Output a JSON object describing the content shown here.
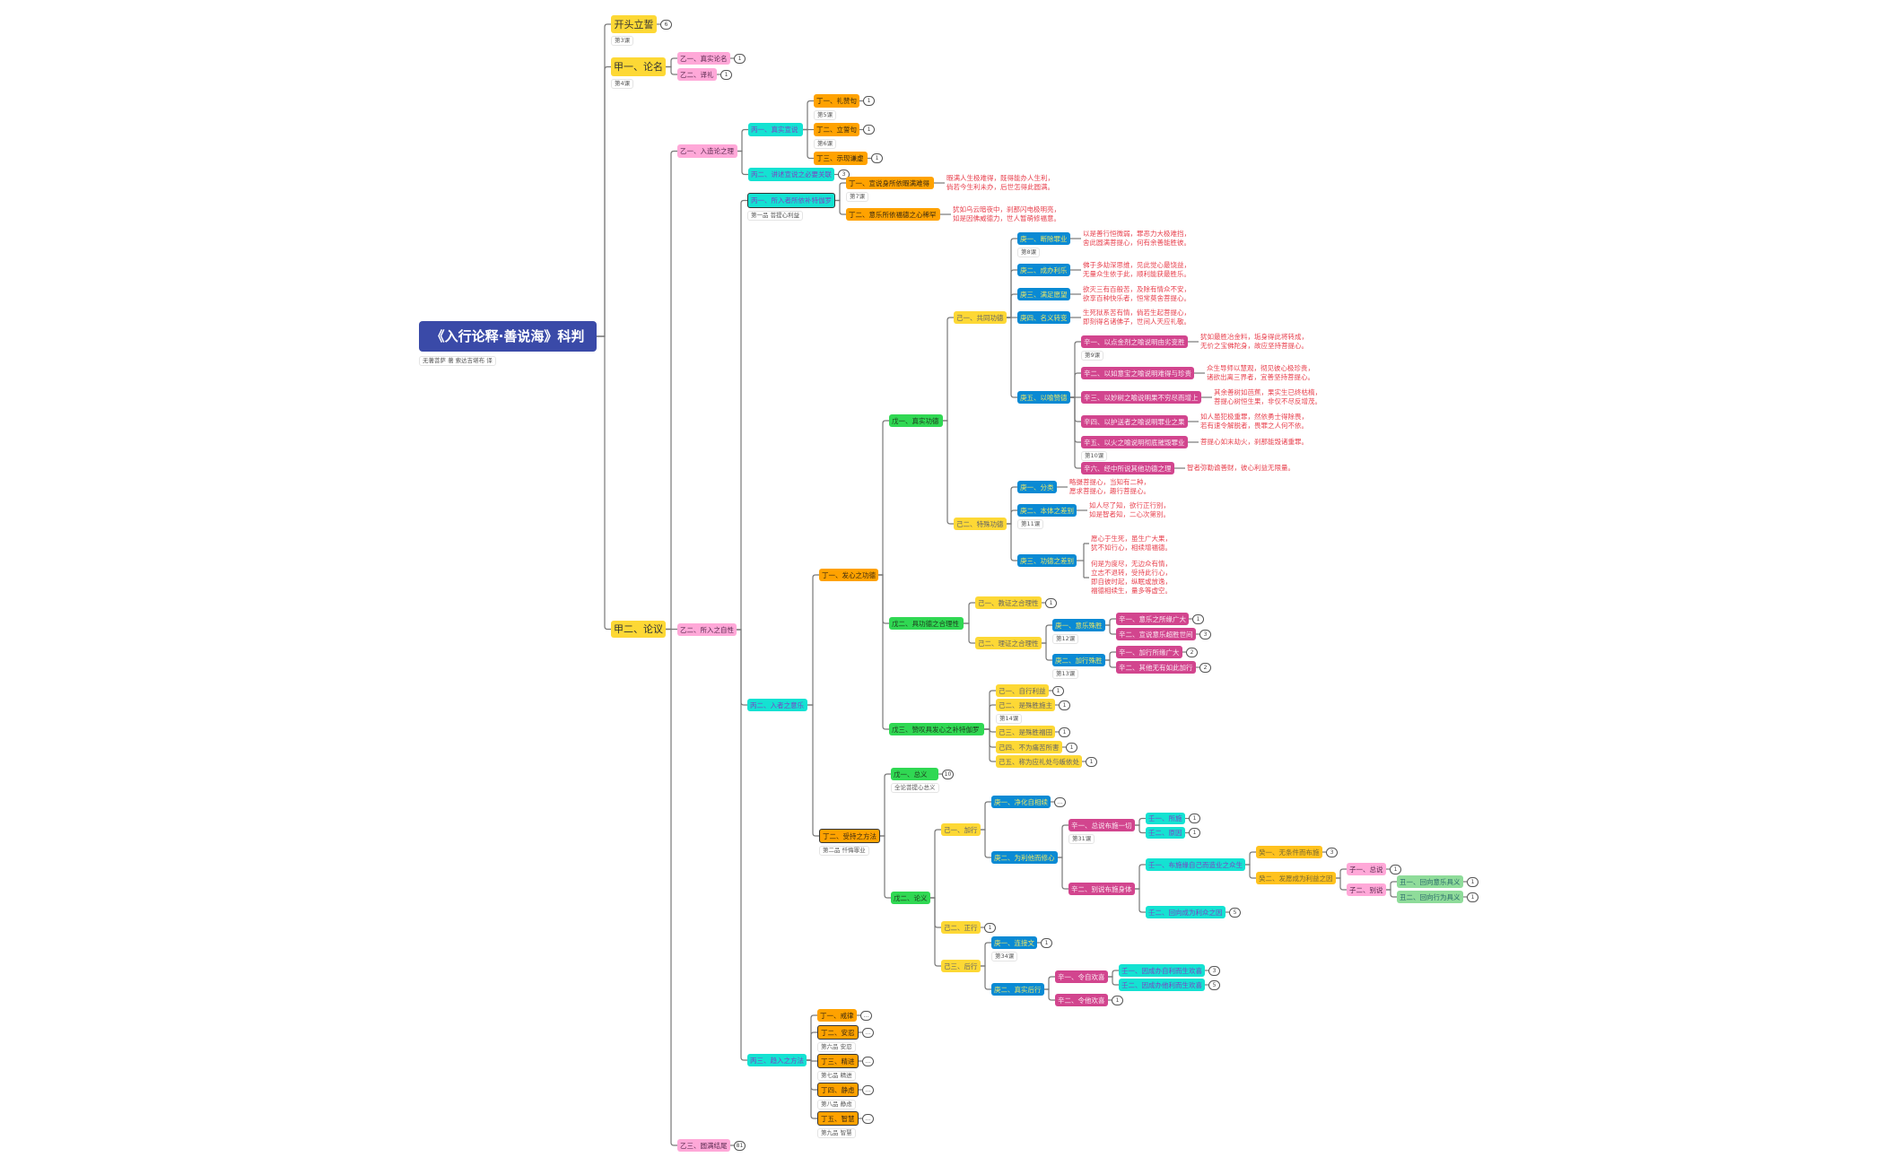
{
  "title": "《入行论释·善说海》科判",
  "subtitle": "无著菩萨 著  索达吉堪布 译",
  "colors": {
    "root": "#3a4aa8",
    "yellow": "#fdd835",
    "pink": "#ffa8d8",
    "cyan": "#14e2d2",
    "orange": "#ffa200",
    "green": "#30d853",
    "blue": "#0a8ad4",
    "magenta": "#d2458e",
    "amber": "#ffc21e",
    "lightgreen": "#8fdc9a",
    "verse": "#e8414e"
  },
  "nodes": {
    "kt": {
      "label": "开头立誓",
      "badge": "6",
      "note": "第3课"
    },
    "j1": {
      "label": "甲一、论名",
      "note": "第4课"
    },
    "j2": {
      "label": "甲二、论议"
    },
    "y1a": {
      "label": "乙一、真实论名",
      "badge": "1"
    },
    "y1b": {
      "label": "乙二、译礼",
      "badge": "1"
    },
    "y2a": {
      "label": "乙一、入造论之理"
    },
    "y2b": {
      "label": "乙二、所入之自性"
    },
    "y2c": {
      "label": "乙三、圆满结尾",
      "badge": "81"
    },
    "b1": {
      "label": "丙一、真实宣说"
    },
    "b2": {
      "label": "丙二、讲述宣说之必要关联",
      "badge": "3"
    },
    "d1": {
      "label": "丁一、礼赞句",
      "badge": "1",
      "note": "第5课"
    },
    "d2": {
      "label": "丁二、立誓句",
      "badge": "1",
      "note": "第6课"
    },
    "d3": {
      "label": "丁三、示现谦虚",
      "badge": "1"
    },
    "c1": {
      "label": "丙一、所入者所依补特伽罗",
      "note": "第一品 菩提心利益"
    },
    "c2": {
      "label": "丙二、入者之意乐"
    },
    "c3": {
      "label": "丙三、趋入之方法"
    },
    "e1": {
      "label": "丁一、宣说身所依暇满难得",
      "note": "第7课",
      "verse": [
        "暇满人生极难得，既得能办人生利，",
        "倘若今生利未办，后世怎得此圆满。"
      ]
    },
    "e2": {
      "label": "丁二、意乐所依福德之心稀罕",
      "verse": [
        "犹如乌云暗夜中，刹那闪电极明亮，",
        "如是因佛威德力，世人暂萌修福意。"
      ]
    },
    "f1": {
      "label": "丁一、发心之功德"
    },
    "f2": {
      "label": "丁二、受持之方法",
      "note": "第二品 忏悔罪业"
    },
    "g1": {
      "label": "戊一、真实功德"
    },
    "g2": {
      "label": "戊二、具功德之合理性"
    },
    "g3": {
      "label": "戊三、赞叹具发心之补特伽罗"
    },
    "h1": {
      "label": "己一、共同功德"
    },
    "h2": {
      "label": "己二、特殊功德"
    },
    "i1": {
      "label": "庚一、断除罪业",
      "note": "第8课",
      "verse": [
        "以是善行恒微弱，罪恶力大极难挡，",
        "舍此圆满菩提心，何有余善能胜彼。"
      ]
    },
    "i2": {
      "label": "庚二、成办利乐",
      "verse": [
        "佛于多劫深思维，见此觉心最饶益，",
        "无量众生依于此，顺利能获最胜乐。"
      ]
    },
    "i3": {
      "label": "庚三、满足愿望",
      "verse": [
        "欲灭三有百般苦，及除有情众不安，",
        "欲享百种快乐者，恒常莫舍菩提心。"
      ]
    },
    "i4": {
      "label": "庚四、名义转变",
      "verse": [
        "生死狱系苦有情，倘若生起菩提心，",
        "即刻得名诸佛子，世间人天应礼敬。"
      ]
    },
    "i5": {
      "label": "庚五、以喻赞德"
    },
    "k1": {
      "label": "辛一、以点金剂之喻说明由劣变胜",
      "note": "第9课",
      "verse": [
        "犹如最胜冶金料，垢身得此将转成，",
        "无价之宝佛陀身，故应坚持菩提心。"
      ]
    },
    "k2": {
      "label": "辛二、以如意宝之喻说明难得与珍贵",
      "verse": [
        "众生导师以慧观，彻见彼心极珍贵，",
        "诸欲出离三界者，宜善坚持菩提心。"
      ]
    },
    "k3": {
      "label": "辛三、以妙树之喻说明果不穷尽而增上",
      "verse": [
        "其余善树如芭蕉，果实生已终枯槁，",
        "菩提心树恒生果，非仅不尽反增茂。"
      ]
    },
    "k4": {
      "label": "辛四、以护送者之喻说明罪业之果",
      "verse": [
        "如人虽犯极重罪，然依勇士得除畏，",
        "若有速令解脱者，畏罪之人何不依。"
      ]
    },
    "k5": {
      "label": "辛五、以火之喻说明彻底摧毁罪业",
      "note": "第10课",
      "verse": [
        "菩提心如末劫火，刹那能毁诸重罪。"
      ]
    },
    "k6": {
      "label": "辛六、经中所说其他功德之理",
      "verse": [
        "智者弥勒谕善财，彼心利益无限量。"
      ]
    },
    "m1": {
      "label": "庚一、分类",
      "verse": [
        "略摄菩提心，当知有二种，",
        "愿求菩提心，趣行菩提心。"
      ]
    },
    "m2": {
      "label": "庚二、本体之差别",
      "note": "第11课",
      "verse": [
        "如人尽了知，欲行正行别，",
        "如是智者知，二心次第别。"
      ]
    },
    "m3": {
      "label": "庚三、功德之差别",
      "verse": [
        "愿心于生死，虽生广大果，",
        "犹不如行心，相续增福德。"
      ],
      "verse2": [
        "何是为度尽，无边众有情，",
        "立志不退转，受持此行心，",
        "即自彼时起，纵眠或放逸，",
        "福德相续生，量多等虚空。"
      ]
    },
    "n1": {
      "label": "己一、教证之合理性",
      "badge": "1"
    },
    "n2": {
      "label": "己二、理证之合理性"
    },
    "o1": {
      "label": "庚一、意乐殊胜",
      "note": "第12课"
    },
    "o2": {
      "label": "庚二、加行殊胜",
      "note": "第13课"
    },
    "p1": {
      "label": "辛一、意乐之所缘广大",
      "badge": "1"
    },
    "p2": {
      "label": "辛二、宣说意乐超胜世间",
      "badge": "3"
    },
    "p3": {
      "label": "辛一、加行所缘广大",
      "badge": "2"
    },
    "p4": {
      "label": "辛二、其他无有如此加行",
      "badge": "2"
    },
    "q1": {
      "label": "己一、自行利益",
      "badge": "1"
    },
    "q2": {
      "label": "己二、是殊胜施主",
      "badge": "1",
      "note": "第14课"
    },
    "q3": {
      "label": "己三、是殊胜福田",
      "badge": "1"
    },
    "q4": {
      "label": "己四、不为痛苦所害",
      "badge": "1"
    },
    "q5": {
      "label": "己五、称为应礼处与皈依处",
      "badge": "1"
    },
    "r1": {
      "label": "戊一、总义",
      "badge": "10",
      "note": "全论菩提心总义"
    },
    "r2": {
      "label": "戊二、论义"
    },
    "s1": {
      "label": "己一、加行"
    },
    "s2": {
      "label": "己二、正行",
      "badge": "1"
    },
    "s3": {
      "label": "己三、后行"
    },
    "t1": {
      "label": "庚一、净化自相续",
      "badge": "…"
    },
    "t2": {
      "label": "庚二、为利他而修心"
    },
    "t3": {
      "label": "庚一、连接文",
      "badge": "1",
      "note": "第34课"
    },
    "t4": {
      "label": "庚二、真实后行"
    },
    "u1": {
      "label": "辛一、总说布施一切",
      "note": "第31课"
    },
    "u2": {
      "label": "辛二、别说布施身体"
    },
    "u3": {
      "label": "辛一、令自欢喜"
    },
    "u4": {
      "label": "辛二、令他欢喜",
      "badge": "1"
    },
    "w1": {
      "label": "壬一、所施",
      "badge": "1"
    },
    "w2": {
      "label": "壬二、原因",
      "badge": "1"
    },
    "w3": {
      "label": "壬一、布施缘自己而造业之众生"
    },
    "w4": {
      "label": "壬二、回向成为利众之因",
      "badge": "5"
    },
    "w5": {
      "label": "壬一、因成办自利而生欢喜",
      "badge": "3"
    },
    "w6": {
      "label": "壬二、因成办他利而生欢喜",
      "badge": "5"
    },
    "x1": {
      "label": "癸一、无条件而布施",
      "badge": "3"
    },
    "x2": {
      "label": "癸二、发愿成为利益之因"
    },
    "z1": {
      "label": "子一、总说",
      "badge": "1"
    },
    "z2": {
      "label": "子二、别说"
    },
    "a1": {
      "label": "丑一、回向意乐具义",
      "badge": "1"
    },
    "a2": {
      "label": "丑二、回向行为具义",
      "badge": "1"
    },
    "dd1": {
      "label": "丁一、戒律",
      "badge": "…"
    },
    "dd2": {
      "label": "丁二、安忍",
      "badge": "…",
      "note": "第六品 安忍"
    },
    "dd3": {
      "label": "丁三、精进",
      "badge": "…",
      "note": "第七品 精进"
    },
    "dd4": {
      "label": "丁四、静虑",
      "badge": "…",
      "note": "第八品 静虑"
    },
    "dd5": {
      "label": "丁五、智慧",
      "badge": "…",
      "note": "第九品 智慧"
    }
  }
}
